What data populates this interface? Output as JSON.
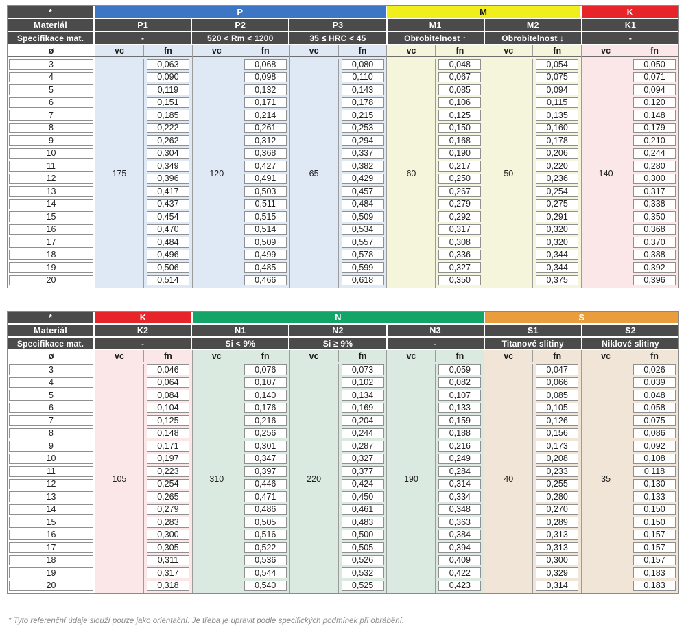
{
  "labels": {
    "corner": "*",
    "material": "Materiál",
    "spec": "Specifikace mat.",
    "diameter": "ø",
    "vc": "vc",
    "fn": "fn"
  },
  "diameters": [
    "3",
    "4",
    "5",
    "6",
    "7",
    "8",
    "9",
    "10",
    "11",
    "12",
    "13",
    "14",
    "15",
    "16",
    "17",
    "18",
    "19",
    "20"
  ],
  "colors": {
    "header_dark": "#4b4b4b",
    "group_P": "#3c76c5",
    "group_M": "#f1ee1e",
    "group_K": "#e62429",
    "group_N": "#12a567",
    "group_S": "#e99d3d",
    "tint_P": "#dfe9f6",
    "tint_M": "#f4f5da",
    "tint_K": "#fbe7e7",
    "tint_N": "#dbeae1",
    "tint_S": "#f1e5d8"
  },
  "tables": [
    {
      "groups": [
        {
          "label": "P",
          "color": "#3c76c5",
          "text_color": "#ffffff",
          "span": 3
        },
        {
          "label": "M",
          "color": "#f1ee1e",
          "text_color": "#1a1a1a",
          "span": 2
        },
        {
          "label": "K",
          "color": "#e62429",
          "text_color": "#ffffff",
          "span": 1
        }
      ],
      "columns": [
        {
          "name": "P1",
          "spec": "-",
          "vc": "175",
          "tint": "#dfe9f6",
          "fn": [
            "0,063",
            "0,090",
            "0,119",
            "0,151",
            "0,185",
            "0,222",
            "0,262",
            "0,304",
            "0,349",
            "0,396",
            "0,417",
            "0,437",
            "0,454",
            "0,470",
            "0,484",
            "0,496",
            "0,506",
            "0,514"
          ]
        },
        {
          "name": "P2",
          "spec": "520 < Rm < 1200",
          "vc": "120",
          "tint": "#dfe9f6",
          "fn": [
            "0,068",
            "0,098",
            "0,132",
            "0,171",
            "0,214",
            "0,261",
            "0,312",
            "0,368",
            "0,427",
            "0,491",
            "0,503",
            "0,511",
            "0,515",
            "0,514",
            "0,509",
            "0,499",
            "0,485",
            "0,466"
          ]
        },
        {
          "name": "P3",
          "spec": "35 ≤ HRC < 45",
          "vc": "65",
          "tint": "#dfe9f6",
          "fn": [
            "0,080",
            "0,110",
            "0,143",
            "0,178",
            "0,215",
            "0,253",
            "0,294",
            "0,337",
            "0,382",
            "0,429",
            "0,457",
            "0,484",
            "0,509",
            "0,534",
            "0,557",
            "0,578",
            "0,599",
            "0,618"
          ]
        },
        {
          "name": "M1",
          "spec": "Obrobitelnost ↑",
          "vc": "60",
          "tint": "#f4f5da",
          "fn": [
            "0,048",
            "0,067",
            "0,085",
            "0,106",
            "0,125",
            "0,150",
            "0,168",
            "0,190",
            "0,217",
            "0,250",
            "0,267",
            "0,279",
            "0,292",
            "0,317",
            "0,308",
            "0,336",
            "0,327",
            "0,350"
          ]
        },
        {
          "name": "M2",
          "spec": "Obrobitelnost ↓",
          "vc": "50",
          "tint": "#f4f5da",
          "fn": [
            "0,054",
            "0,075",
            "0,094",
            "0,115",
            "0,135",
            "0,160",
            "0,178",
            "0,206",
            "0,220",
            "0,236",
            "0,254",
            "0,275",
            "0,291",
            "0,320",
            "0,320",
            "0,344",
            "0,344",
            "0,375"
          ]
        },
        {
          "name": "K1",
          "spec": "-",
          "vc": "140",
          "tint": "#fbe7e7",
          "fn": [
            "0,050",
            "0,071",
            "0,094",
            "0,120",
            "0,148",
            "0,179",
            "0,210",
            "0,244",
            "0,280",
            "0,300",
            "0,317",
            "0,338",
            "0,350",
            "0,368",
            "0,370",
            "0,388",
            "0,392",
            "0,396"
          ]
        }
      ]
    },
    {
      "groups": [
        {
          "label": "K",
          "color": "#e62429",
          "text_color": "#ffffff",
          "span": 1
        },
        {
          "label": "N",
          "color": "#12a567",
          "text_color": "#ffffff",
          "span": 3
        },
        {
          "label": "S",
          "color": "#e99d3d",
          "text_color": "#ffffff",
          "span": 2
        }
      ],
      "columns": [
        {
          "name": "K2",
          "spec": "-",
          "vc": "105",
          "tint": "#fbe7e7",
          "fn": [
            "0,046",
            "0,064",
            "0,084",
            "0,104",
            "0,125",
            "0,148",
            "0,171",
            "0,197",
            "0,223",
            "0,254",
            "0,265",
            "0,279",
            "0,283",
            "0,300",
            "0,305",
            "0,311",
            "0,317",
            "0,318"
          ]
        },
        {
          "name": "N1",
          "spec": "Si < 9%",
          "vc": "310",
          "tint": "#dbeae1",
          "fn": [
            "0,076",
            "0,107",
            "0,140",
            "0,176",
            "0,216",
            "0,256",
            "0,301",
            "0,347",
            "0,397",
            "0,446",
            "0,471",
            "0,486",
            "0,505",
            "0,516",
            "0,522",
            "0,536",
            "0,544",
            "0,540"
          ]
        },
        {
          "name": "N2",
          "spec": "Si ≥ 9%",
          "vc": "220",
          "tint": "#dbeae1",
          "fn": [
            "0,073",
            "0,102",
            "0,134",
            "0,169",
            "0,204",
            "0,244",
            "0,287",
            "0,327",
            "0,377",
            "0,424",
            "0,450",
            "0,461",
            "0,483",
            "0,500",
            "0,505",
            "0,526",
            "0,532",
            "0,525"
          ]
        },
        {
          "name": "N3",
          "spec": "-",
          "vc": "190",
          "tint": "#dbeae1",
          "fn": [
            "0,059",
            "0,082",
            "0,107",
            "0,133",
            "0,159",
            "0,188",
            "0,216",
            "0,249",
            "0,284",
            "0,314",
            "0,334",
            "0,348",
            "0,363",
            "0,384",
            "0,394",
            "0,409",
            "0,422",
            "0,423"
          ]
        },
        {
          "name": "S1",
          "spec": "Titanové slitiny",
          "vc": "40",
          "tint": "#f1e5d8",
          "fn": [
            "0,047",
            "0,066",
            "0,085",
            "0,105",
            "0,126",
            "0,156",
            "0,173",
            "0,208",
            "0,233",
            "0,255",
            "0,280",
            "0,270",
            "0,289",
            "0,313",
            "0,313",
            "0,300",
            "0,329",
            "0,314"
          ]
        },
        {
          "name": "S2",
          "spec": "Niklové slitiny",
          "vc": "35",
          "tint": "#f1e5d8",
          "fn": [
            "0,026",
            "0,039",
            "0,048",
            "0,058",
            "0,075",
            "0,086",
            "0,092",
            "0,108",
            "0,118",
            "0,130",
            "0,133",
            "0,150",
            "0,150",
            "0,157",
            "0,157",
            "0,157",
            "0,183",
            "0,183"
          ]
        }
      ]
    }
  ],
  "footnote": "* Tyto referenční údaje slouží pouze jako orientační. Je třeba je upravit podle specifických podmínek při obrábění."
}
